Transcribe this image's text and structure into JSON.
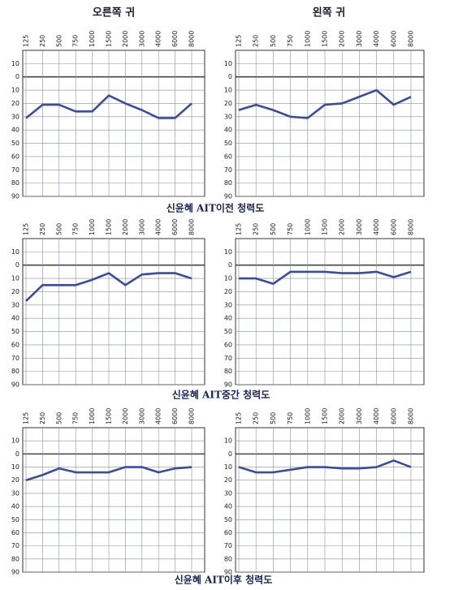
{
  "page": {
    "column_titles": [
      "오른쪽 귀",
      "왼쪽 귀"
    ],
    "row_captions": [
      "신윤혜 AIT이전 청력도",
      "신윤혜 AIT중간 청력도",
      "신윤혜 AIT이후 청력도"
    ]
  },
  "chart_data": [
    {
      "type": "line",
      "categories": [
        "125",
        "250",
        "500",
        "750",
        "1000",
        "1500",
        "2000",
        "3000",
        "4000",
        "6000",
        "8000"
      ],
      "values": [
        31,
        21,
        21,
        26,
        26,
        14,
        20,
        25,
        31,
        31,
        20
      ],
      "color": "#3b4c9e",
      "ylim": [
        90,
        -20
      ],
      "yticks": [
        {
          "value": -10,
          "label": "10"
        },
        0,
        10,
        20,
        30,
        40,
        50,
        60,
        70,
        80,
        90
      ],
      "grid": true
    },
    {
      "type": "line",
      "categories": [
        "125",
        "250",
        "500",
        "750",
        "1000",
        "1500",
        "2000",
        "3000",
        "4000",
        "6000",
        "8000"
      ],
      "values": [
        25,
        21,
        25,
        30,
        31,
        21,
        20,
        15,
        10,
        21,
        15
      ],
      "color": "#3b4c9e",
      "ylim": [
        90,
        -20
      ],
      "yticks": [
        {
          "value": -10,
          "label": "10"
        },
        0,
        10,
        20,
        30,
        40,
        50,
        60,
        70,
        80,
        90
      ],
      "grid": true
    },
    {
      "type": "line",
      "categories": [
        "125",
        "250",
        "500",
        "750",
        "1000",
        "1500",
        "2000",
        "3000",
        "4000",
        "6000",
        "8000"
      ],
      "values": [
        27,
        15,
        15,
        15,
        11,
        6,
        15,
        7,
        6,
        6,
        10
      ],
      "color": "#3b4c9e",
      "ylim": [
        90,
        -20
      ],
      "yticks": [
        {
          "value": -10,
          "label": "10"
        },
        0,
        10,
        20,
        30,
        40,
        50,
        60,
        70,
        80,
        90
      ],
      "grid": true
    },
    {
      "type": "line",
      "categories": [
        "125",
        "250",
        "500",
        "750",
        "1000",
        "1500",
        "2000",
        "3000",
        "4000",
        "6000",
        "8000"
      ],
      "values": [
        10,
        10,
        14,
        5,
        5,
        5,
        6,
        6,
        5,
        9,
        5
      ],
      "color": "#3b4c9e",
      "ylim": [
        90,
        -20
      ],
      "yticks": [
        {
          "value": -10,
          "label": "10"
        },
        0,
        10,
        20,
        30,
        40,
        50,
        60,
        70,
        80,
        90
      ],
      "grid": true
    },
    {
      "type": "line",
      "categories": [
        "125",
        "250",
        "500",
        "750",
        "1000",
        "1500",
        "2000",
        "3000",
        "4000",
        "6000",
        "8000"
      ],
      "values": [
        20,
        16,
        11,
        14,
        14,
        14,
        10,
        10,
        14,
        11,
        10
      ],
      "color": "#3b4c9e",
      "ylim": [
        90,
        -20
      ],
      "yticks": [
        {
          "value": -10,
          "label": "10"
        },
        0,
        10,
        20,
        30,
        40,
        50,
        60,
        70,
        80,
        90
      ],
      "grid": true
    },
    {
      "type": "line",
      "categories": [
        "125",
        "250",
        "500",
        "750",
        "1000",
        "1500",
        "2000",
        "3000",
        "4000",
        "6000",
        "8000"
      ],
      "values": [
        10,
        14,
        14,
        12,
        10,
        10,
        11,
        11,
        10,
        5,
        10
      ],
      "color": "#3b4c9e",
      "ylim": [
        90,
        -20
      ],
      "yticks": [
        {
          "value": -10,
          "label": "10"
        },
        0,
        10,
        20,
        30,
        40,
        50,
        60,
        70,
        80,
        90
      ],
      "grid": true
    }
  ]
}
